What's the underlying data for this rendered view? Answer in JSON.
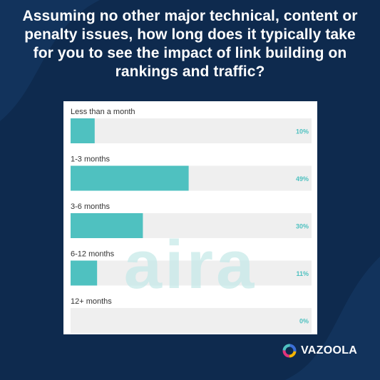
{
  "title": "Assuming no other major technical, content or penalty issues, how long does it typically take for you to see the impact of link building on rankings and traffic?",
  "watermark": "aira",
  "brand": {
    "name": "VAZOOLA",
    "icon": "vazoola-ring-logo-icon"
  },
  "colors": {
    "background": "#0e2a4e",
    "bar": "#4fc1c0",
    "track": "#efefef",
    "percent_text": "#4fc1c0",
    "label_text": "#333333",
    "watermark": "#c4e9e8"
  },
  "chart_data": {
    "type": "bar",
    "orientation": "horizontal",
    "categories": [
      "Less than a month",
      "1-3 months",
      "3-6 months",
      "6-12 months",
      "12+ months"
    ],
    "values": [
      10,
      49,
      30,
      11,
      0
    ],
    "value_labels": [
      "10%",
      "49%",
      "30%",
      "11%",
      "0%"
    ],
    "unit": "%",
    "xlim": [
      0,
      100
    ],
    "legend": false,
    "grid": false
  }
}
